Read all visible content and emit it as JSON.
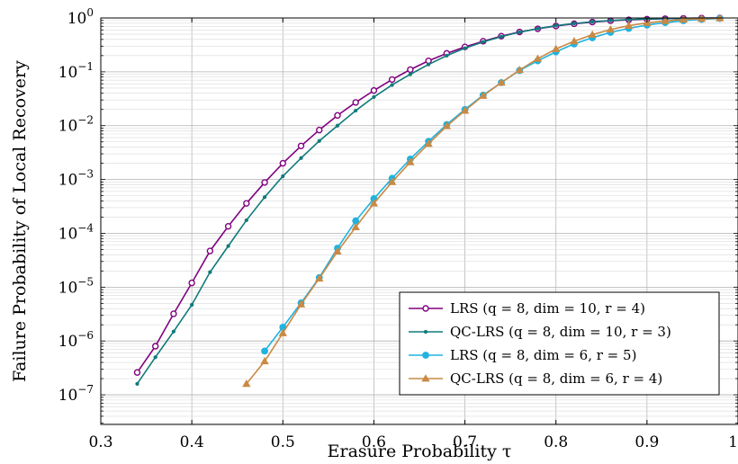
{
  "chart_data": {
    "type": "line",
    "xlabel": "Erasure Probability τ",
    "ylabel": "Failure Probability of Local Recovery",
    "xlim": [
      0.3,
      1.0
    ],
    "ylim_log10": [
      -7.55,
      0.0
    ],
    "yscale": "log",
    "grid": true,
    "legend_position": "bottom-right",
    "x_ticks": [
      0.3,
      0.4,
      0.5,
      0.6,
      0.7,
      0.8,
      0.9,
      1.0
    ],
    "x_tick_labels": [
      "0.3",
      "0.4",
      "0.5",
      "0.6",
      "0.7",
      "0.8",
      "0.9",
      "1"
    ],
    "y_ticks": [
      {
        "exp": 0,
        "label": "10^0"
      },
      {
        "exp": -1,
        "label": "10^-1"
      },
      {
        "exp": -2,
        "label": "10^-2"
      },
      {
        "exp": -3,
        "label": "10^-3"
      },
      {
        "exp": -4,
        "label": "10^-4"
      },
      {
        "exp": -5,
        "label": "10^-5"
      },
      {
        "exp": -6,
        "label": "10^-6"
      },
      {
        "exp": -7,
        "label": "10^-7"
      }
    ],
    "series": [
      {
        "name": "LRS (q = 8, dim = 10, r = 4)",
        "color": "#800080",
        "marker": "circle-open",
        "x": [
          0.34,
          0.36,
          0.38,
          0.4,
          0.42,
          0.44,
          0.46,
          0.48,
          0.5,
          0.52,
          0.54,
          0.56,
          0.58,
          0.6,
          0.62,
          0.64,
          0.66,
          0.68,
          0.7,
          0.72,
          0.74,
          0.76,
          0.78,
          0.8,
          0.82,
          0.84,
          0.86,
          0.88,
          0.9,
          0.92,
          0.94,
          0.96,
          0.98
        ],
        "y": [
          2.6e-07,
          8e-07,
          3.2e-06,
          1.2e-05,
          4.7e-05,
          0.000135,
          0.00036,
          0.00088,
          0.002,
          0.0042,
          0.0083,
          0.0155,
          0.027,
          0.045,
          0.072,
          0.11,
          0.16,
          0.22,
          0.29,
          0.37,
          0.46,
          0.55,
          0.63,
          0.71,
          0.78,
          0.84,
          0.89,
          0.925,
          0.95,
          0.97,
          0.985,
          0.995,
          1.0
        ]
      },
      {
        "name": "QC-LRS (q = 8, dim = 10, r = 3)",
        "color": "#107a7a",
        "marker": "dot",
        "x": [
          0.34,
          0.36,
          0.38,
          0.4,
          0.42,
          0.44,
          0.46,
          0.48,
          0.5,
          0.52,
          0.54,
          0.56,
          0.58,
          0.6,
          0.62,
          0.64,
          0.66,
          0.68,
          0.7,
          0.72,
          0.74,
          0.76,
          0.78,
          0.8,
          0.82,
          0.84,
          0.86,
          0.88,
          0.9,
          0.92,
          0.94,
          0.96,
          0.98
        ],
        "y": [
          1.6e-07,
          5e-07,
          1.5e-06,
          4.7e-06,
          1.9e-05,
          5.8e-05,
          0.000175,
          0.00047,
          0.00115,
          0.0025,
          0.0052,
          0.01,
          0.019,
          0.034,
          0.057,
          0.09,
          0.137,
          0.2,
          0.275,
          0.36,
          0.45,
          0.545,
          0.635,
          0.72,
          0.79,
          0.85,
          0.9,
          0.935,
          0.96,
          0.975,
          0.987,
          0.995,
          1.0
        ]
      },
      {
        "name": "LRS (q = 8, dim = 6, r = 5)",
        "color": "#1fb3e0",
        "marker": "circle-filled",
        "x": [
          0.48,
          0.5,
          0.52,
          0.54,
          0.56,
          0.58,
          0.6,
          0.62,
          0.64,
          0.66,
          0.68,
          0.7,
          0.72,
          0.74,
          0.76,
          0.78,
          0.8,
          0.82,
          0.84,
          0.86,
          0.88,
          0.9,
          0.92,
          0.94,
          0.96,
          0.98
        ],
        "y": [
          6.5e-07,
          1.8e-06,
          5.1e-06,
          1.5e-05,
          5.3e-05,
          0.00017,
          0.00044,
          0.00105,
          0.0024,
          0.0051,
          0.0105,
          0.02,
          0.037,
          0.063,
          0.106,
          0.16,
          0.235,
          0.33,
          0.43,
          0.54,
          0.64,
          0.74,
          0.82,
          0.89,
          0.945,
          0.98
        ]
      },
      {
        "name": "QC-LRS (q = 8, dim = 6, r = 4)",
        "color": "#c98a45",
        "marker": "triangle",
        "x": [
          0.46,
          0.48,
          0.5,
          0.52,
          0.54,
          0.56,
          0.58,
          0.6,
          0.62,
          0.64,
          0.66,
          0.68,
          0.7,
          0.72,
          0.74,
          0.76,
          0.78,
          0.8,
          0.82,
          0.84,
          0.86,
          0.88,
          0.9,
          0.92,
          0.94,
          0.96,
          0.98
        ],
        "y": [
          1.6e-07,
          4.2e-07,
          1.4e-06,
          4.8e-06,
          1.45e-05,
          4.6e-05,
          0.00013,
          0.00036,
          0.0009,
          0.0021,
          0.0046,
          0.0098,
          0.019,
          0.036,
          0.063,
          0.108,
          0.175,
          0.265,
          0.37,
          0.49,
          0.61,
          0.72,
          0.81,
          0.88,
          0.935,
          0.97,
          0.99
        ]
      }
    ]
  }
}
